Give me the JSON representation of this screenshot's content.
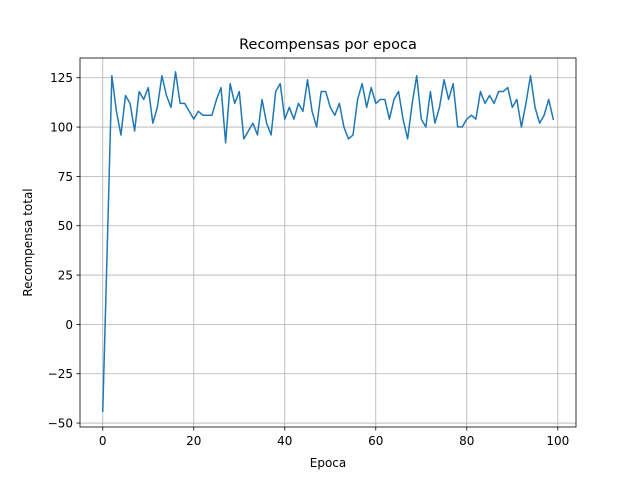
{
  "chart_data": {
    "type": "line",
    "title": "Recompensas por epoca",
    "xlabel": "Epoca",
    "ylabel": "Recompensa total",
    "xlim": [
      -5,
      104
    ],
    "ylim": [
      -52,
      135
    ],
    "xticks": [
      0,
      20,
      40,
      60,
      80,
      100
    ],
    "yticks": [
      -50,
      -25,
      0,
      25,
      50,
      75,
      100,
      125
    ],
    "grid": true,
    "legend": "none",
    "color": "#1f77b4",
    "series": [
      {
        "x": [
          0,
          1,
          2,
          3,
          4,
          5,
          6,
          7,
          8,
          9,
          10,
          11,
          12,
          13,
          14,
          15,
          16,
          17,
          18,
          19,
          20,
          21,
          22,
          23,
          24,
          25,
          26,
          27,
          28,
          29,
          30,
          31,
          32,
          33,
          34,
          35,
          36,
          37,
          38,
          39,
          40,
          41,
          42,
          43,
          44,
          45,
          46,
          47,
          48,
          49,
          50,
          51,
          52,
          53,
          54,
          55,
          56,
          57,
          58,
          59,
          60,
          61,
          62,
          63,
          64,
          65,
          66,
          67,
          68,
          69,
          70,
          71,
          72,
          73,
          74,
          75,
          76,
          77,
          78,
          79,
          80,
          81,
          82,
          83,
          84,
          85,
          86,
          87,
          88,
          89,
          90,
          91,
          92,
          93,
          94,
          95,
          96,
          97,
          98,
          99
        ],
        "values": [
          -44,
          40,
          126,
          108,
          96,
          116,
          112,
          98,
          118,
          114,
          120,
          102,
          110,
          126,
          116,
          110,
          128,
          112,
          112,
          108,
          104,
          108,
          106,
          106,
          106,
          114,
          120,
          92,
          122,
          112,
          118,
          94,
          98,
          102,
          96,
          114,
          102,
          96,
          118,
          122,
          104,
          110,
          104,
          112,
          108,
          124,
          108,
          100,
          118,
          118,
          110,
          106,
          112,
          100,
          94,
          96,
          114,
          122,
          110,
          120,
          112,
          114,
          114,
          104,
          114,
          118,
          104,
          94,
          112,
          126,
          104,
          100,
          118,
          102,
          110,
          124,
          114,
          122,
          100,
          100,
          104,
          106,
          104,
          118,
          112,
          116,
          112,
          118,
          118,
          120,
          110,
          114,
          100,
          112,
          126,
          110,
          102,
          106,
          114,
          104
        ]
      }
    ]
  }
}
